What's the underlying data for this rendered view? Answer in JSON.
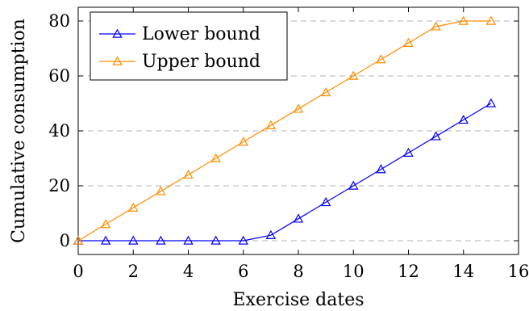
{
  "chart_data": {
    "type": "line",
    "x": [
      0,
      1,
      2,
      3,
      4,
      5,
      6,
      7,
      8,
      9,
      10,
      11,
      12,
      13,
      14,
      15
    ],
    "series": [
      {
        "name": "Lower bound",
        "color": "#0000ff",
        "marker": "triangle-open",
        "values": [
          0,
          0,
          0,
          0,
          0,
          0,
          0,
          2,
          8,
          14,
          20,
          26,
          32,
          38,
          44,
          50
        ]
      },
      {
        "name": "Upper bound",
        "color": "#ff8c00",
        "marker": "triangle-open",
        "values": [
          0,
          6,
          12,
          18,
          24,
          30,
          36,
          42,
          48,
          54,
          60,
          66,
          72,
          78,
          80,
          80
        ]
      }
    ],
    "xlabel": "Exercise dates",
    "ylabel": "Cumulative consumption",
    "xlim": [
      0,
      16
    ],
    "ylim": [
      -5,
      85
    ],
    "x_ticks": [
      0,
      2,
      4,
      6,
      8,
      10,
      12,
      14,
      16
    ],
    "y_ticks": [
      0,
      20,
      40,
      60,
      80
    ],
    "grid": "horizontal-dashed",
    "legend_position": "top-left"
  }
}
